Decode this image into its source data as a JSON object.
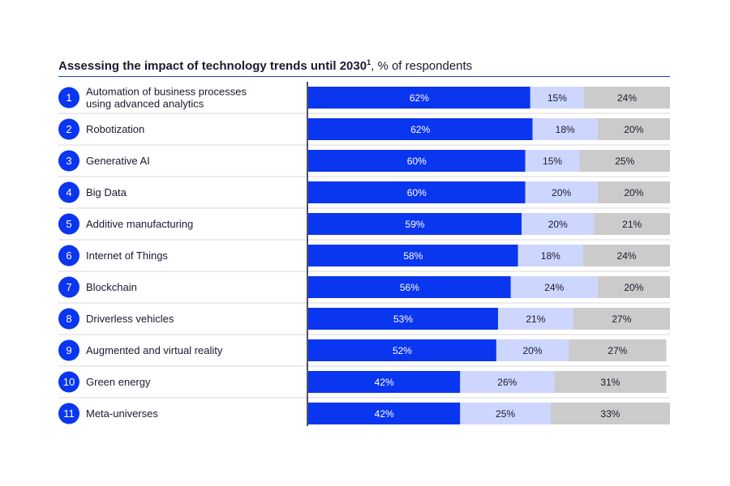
{
  "chart_data": {
    "type": "bar",
    "orientation": "horizontal",
    "stacked": true,
    "title_bold": "Assessing the impact of technology trends until 2030",
    "title_sup": "1",
    "title_rest": ", % of respondents",
    "xlim": [
      0,
      100
    ],
    "categories": [
      {
        "num": "1",
        "label": "Automation of business processes using advanced analytics"
      },
      {
        "num": "2",
        "label": "Robotization"
      },
      {
        "num": "3",
        "label": "Generative AI"
      },
      {
        "num": "4",
        "label": "Big Data"
      },
      {
        "num": "5",
        "label": "Additive manufacturing"
      },
      {
        "num": "6",
        "label": "Internet of Things"
      },
      {
        "num": "7",
        "label": "Blockchain"
      },
      {
        "num": "8",
        "label": "Driverless vehicles"
      },
      {
        "num": "9",
        "label": "Augmented and virtual reality"
      },
      {
        "num": "10",
        "label": "Green energy"
      },
      {
        "num": "11",
        "label": "Meta-universes"
      }
    ],
    "series": [
      {
        "color": "#0a36f0",
        "values": [
          62,
          62,
          60,
          60,
          59,
          58,
          56,
          53,
          52,
          42,
          42
        ]
      },
      {
        "color": "#cdd6ff",
        "values": [
          15,
          18,
          15,
          20,
          20,
          18,
          24,
          21,
          20,
          26,
          25
        ]
      },
      {
        "color": "#cbcbcb",
        "values": [
          24,
          20,
          25,
          20,
          21,
          24,
          20,
          27,
          27,
          31,
          33
        ]
      }
    ],
    "value_suffix": "%",
    "grid": false,
    "legend": "none"
  },
  "colors": {
    "accent": "#0a36f0",
    "rule": "#1a3ccf",
    "separator": "#d9d9d9",
    "axis": "#1a1a2e"
  }
}
